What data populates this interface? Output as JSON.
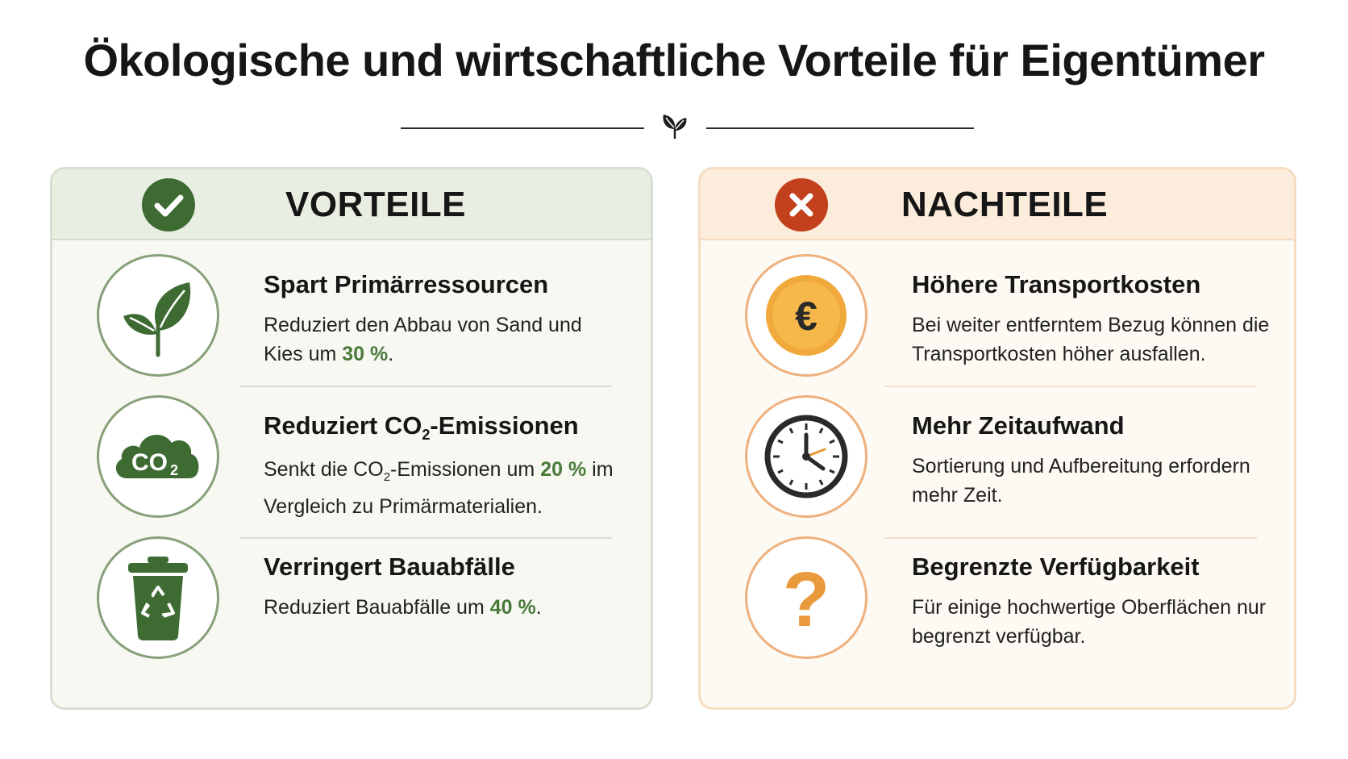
{
  "title": "Ökologische und wirtschaftliche Vorteile für Eigentümer",
  "icons": {
    "divider": "leaf-sprout-icon"
  },
  "colors": {
    "pros_accent": "#3d6b32",
    "cons_accent": "#c2401c",
    "highlight": "#4a7a3b",
    "orange": "#e89a3c"
  },
  "pros": {
    "heading": "VORTEILE",
    "badge_icon": "checkmark-icon",
    "items": [
      {
        "icon": "leaf-icon",
        "title": "Spart Primärressourcen",
        "text_before": "Reduziert den Abbau von Sand und Kies um ",
        "highlight": "30 %",
        "text_after": "."
      },
      {
        "icon": "co2-cloud-icon",
        "title_pre": "Reduziert CO",
        "title_sub": "2",
        "title_post": "-Emissionen",
        "text_pre": "Senkt die CO",
        "text_sub": "2",
        "text_mid": "-Emissionen um ",
        "highlight": "20 %",
        "text_after": " im Vergleich zu Primärmaterialien."
      },
      {
        "icon": "recycling-bin-icon",
        "title": "Verringert Bauabfälle",
        "text_before": "Reduziert Bauabfälle um ",
        "highlight": "40 %",
        "text_after": "."
      }
    ]
  },
  "cons": {
    "heading": "NACHTEILE",
    "badge_icon": "cross-icon",
    "items": [
      {
        "icon": "euro-coin-icon",
        "icon_glyph": "€",
        "title": "Höhere Transportkosten",
        "text": "Bei weiter entferntem Bezug können die Transportkosten höher ausfallen."
      },
      {
        "icon": "clock-icon",
        "title": "Mehr Zeitaufwand",
        "text": "Sortierung und Aufbereitung erfordern mehr Zeit."
      },
      {
        "icon": "question-mark-icon",
        "icon_glyph": "?",
        "title": "Begrenzte Verfügbarkeit",
        "text": "Für einige hochwertige Oberflächen nur begrenzt verfügbar."
      }
    ]
  }
}
